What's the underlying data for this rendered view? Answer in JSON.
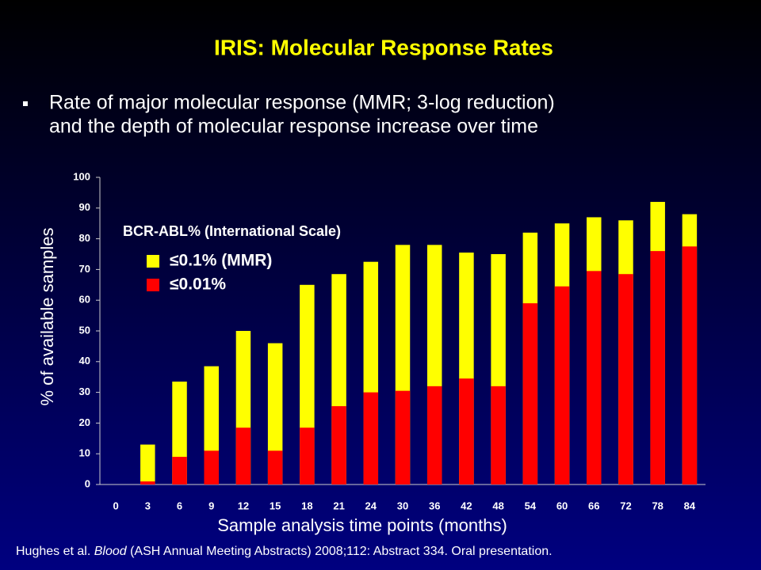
{
  "chart_data": {
    "type": "bar",
    "bar_mode": "overlay",
    "title": "IRIS:  Molecular Response Rates",
    "bullets": [
      "Rate of major molecular response (MMR; 3-log reduction)",
      "and the depth of molecular response increase over time"
    ],
    "legend_title": "BCR-ABL% (International Scale)",
    "y_label": "% of available samples",
    "x_label": "Sample analysis time points (months)",
    "footnote": [
      "Hughes et al. ",
      "Blood",
      " (ASH Annual Meeting Abstracts) 2008;112: Abstract 334. Oral presentation."
    ],
    "categories": [
      "0",
      "3",
      "6",
      "9",
      "12",
      "15",
      "18",
      "21",
      "24",
      "30",
      "36",
      "42",
      "48",
      "54",
      "60",
      "66",
      "72",
      "78",
      "84"
    ],
    "series": [
      {
        "name": "≤0.1% (MMR)",
        "color": "#ffff00",
        "values": [
          0,
          13,
          33.5,
          38.5,
          50,
          46,
          65,
          68.5,
          72.5,
          78,
          78,
          75.5,
          75,
          82,
          85,
          87,
          86,
          92,
          88
        ]
      },
      {
        "name": "≤0.01%",
        "color": "#ff0000",
        "values": [
          0,
          1,
          9,
          11,
          18.5,
          11,
          18.5,
          25.5,
          30,
          30.5,
          32,
          34.5,
          32,
          59,
          64.5,
          69.5,
          68.5,
          76,
          77.5
        ]
      }
    ],
    "ylim": [
      0,
      100
    ],
    "yticks": [
      0,
      10,
      20,
      30,
      40,
      50,
      60,
      70,
      80,
      90,
      100
    ]
  }
}
